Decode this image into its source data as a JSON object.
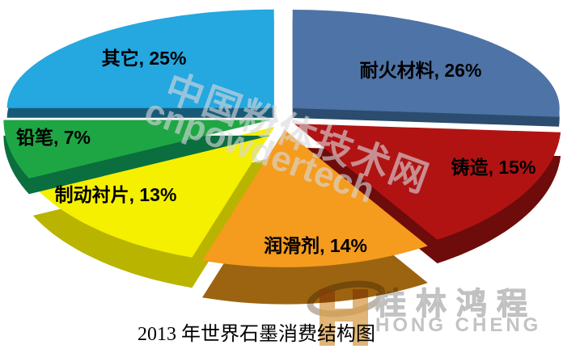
{
  "chart_data": {
    "type": "pie",
    "title": "2013 年世界石墨消费结构图",
    "unit": "%",
    "style": "3d-exploded",
    "start_angle": "top",
    "direction": "clockwise",
    "legend_position": "none",
    "segments": [
      {
        "label": "耐火材料",
        "value": 26,
        "color": "#4e73a6",
        "side_color": "#2b4c6e"
      },
      {
        "label": "铸造",
        "value": 15,
        "color": "#b11313",
        "side_color": "#6e0b0b"
      },
      {
        "label": "润滑剂",
        "value": 14,
        "color": "#f59b1e",
        "side_color": "#9c6410"
      },
      {
        "label": "制动衬片",
        "value": 13,
        "color": "#f5f000",
        "side_color": "#b9b400"
      },
      {
        "label": "铅笔",
        "value": 7,
        "color": "#1fa644",
        "side_color": "#0b6e3e"
      },
      {
        "label": "其它",
        "value": 25,
        "color": "#25a7e0",
        "side_color": "#175a78"
      }
    ]
  },
  "watermark": {
    "line1": "中国粉体技术网",
    "line2": "cnpowdertech"
  },
  "logo": {
    "name": "桂林鸿程",
    "latin": "HONG CHENG"
  }
}
